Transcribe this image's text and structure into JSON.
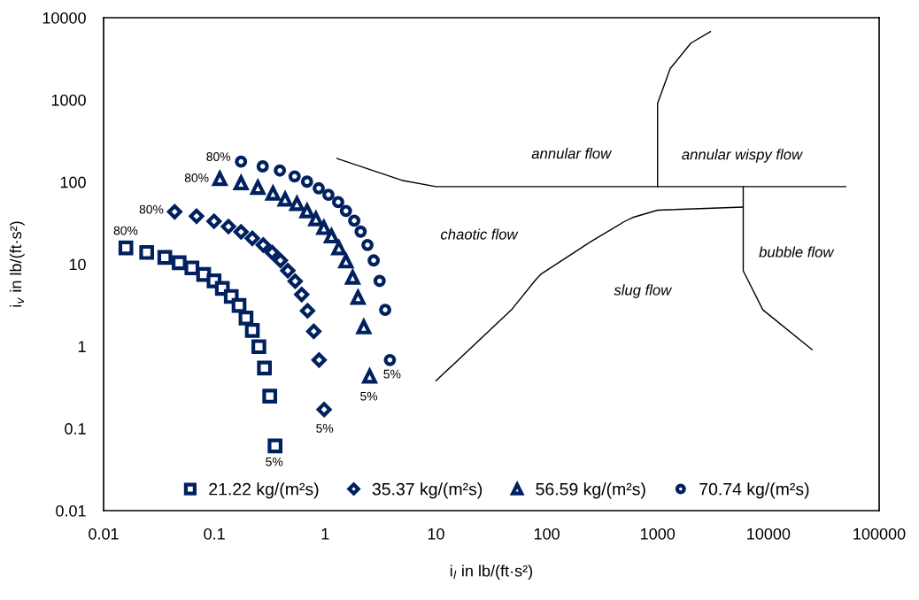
{
  "chart_data": {
    "type": "scatter",
    "xlabel": "i$_{l}$ in lb/(ft·s²)",
    "ylabel": "i$_{v}$ in lb/(ft·s²)",
    "log": "xy",
    "xlim": [
      0.01,
      100000
    ],
    "ylim": [
      0.01,
      10000
    ],
    "xticks": [
      0.01,
      0.1,
      1,
      10,
      100,
      1000,
      10000,
      100000
    ],
    "yticks": [
      0.01,
      0.1,
      1,
      10,
      100,
      1000,
      10000
    ],
    "grid": false,
    "legend": "bottom",
    "series": [
      {
        "name": "21.22 kg/(m²s)",
        "color": "#002060",
        "marker": "square",
        "x": [
          0.0159,
          0.0245,
          0.0357,
          0.0481,
          0.0627,
          0.08,
          0.0993,
          0.118,
          0.142,
          0.167,
          0.193,
          0.22,
          0.252,
          0.283,
          0.316,
          0.353
        ],
        "values": [
          15.8,
          13.9,
          12.1,
          10.4,
          9.0,
          7.5,
          6.25,
          5.08,
          4.04,
          3.15,
          2.21,
          1.56,
          0.99,
          0.545,
          0.248,
          0.0614
        ]
      },
      {
        "name": "35.37 kg/(m²s)",
        "color": "#002060",
        "marker": "diamond",
        "x": [
          0.0438,
          0.069,
          0.0993,
          0.134,
          0.174,
          0.22,
          0.276,
          0.332,
          0.394,
          0.46,
          0.536,
          0.614,
          0.693,
          0.789,
          0.881,
          0.978
        ],
        "values": [
          43.4,
          38.3,
          33.3,
          28.7,
          24.7,
          20.6,
          17.1,
          13.9,
          11.1,
          8.34,
          6.2,
          4.27,
          2.71,
          1.52,
          0.681,
          0.17
        ]
      },
      {
        "name": "56.59 kg/(m²s)",
        "color": "#002060",
        "marker": "triangle",
        "x": [
          0.112,
          0.174,
          0.247,
          0.338,
          0.435,
          0.556,
          0.686,
          0.824,
          0.973,
          1.14,
          1.33,
          1.54,
          1.77,
          1.98,
          2.23,
          2.52
        ],
        "values": [
          110,
          97.3,
          85.9,
          72.9,
          61.8,
          54.6,
          44.4,
          35.5,
          27.8,
          22.0,
          15.8,
          10.9,
          6.92,
          3.94,
          1.72,
          0.432
        ]
      },
      {
        "name": "70.74 kg/(m²s)",
        "color": "#002060",
        "marker": "circle",
        "x": [
          0.174,
          0.273,
          0.39,
          0.53,
          0.686,
          0.875,
          1.07,
          1.31,
          1.54,
          1.83,
          2.09,
          2.41,
          2.74,
          3.1,
          3.48,
          3.84
        ],
        "values": [
          177,
          155,
          138,
          117,
          101,
          83.8,
          69.9,
          56.9,
          44.4,
          33.8,
          24.9,
          17.1,
          11.1,
          6.25,
          2.78,
          0.681
        ]
      },
      {
        "type": "line",
        "color": "#000000",
        "marker": "none",
        "x": [
          1.28,
          4.9,
          10,
          50000
        ],
        "values": [
          193,
          105,
          88,
          88
        ]
      },
      {
        "type": "line",
        "color": "#000000",
        "marker": "none",
        "x": [
          1000,
          1000,
          1300,
          2000,
          3000
        ],
        "values": [
          88,
          900,
          2400,
          4900,
          6770
        ]
      },
      {
        "type": "line",
        "color": "#000000",
        "marker": "none",
        "x": [
          10,
          48,
          79,
          89,
          249,
          508,
          596,
          1000,
          5930
        ],
        "values": [
          0.38,
          2.78,
          6.4,
          7.6,
          18.8,
          33.3,
          37,
          45.4,
          49.5
        ]
      },
      {
        "type": "line",
        "color": "#000000",
        "marker": "none",
        "x": [
          5930,
          5930,
          8920,
          24800
        ],
        "values": [
          88,
          8.3,
          2.78,
          0.91
        ]
      }
    ],
    "annotations": [
      "annular flow",
      "annular wispy flow",
      "chaotic flow",
      "slug flow",
      "bubble flow",
      "80%",
      "80%",
      "80%",
      "80%",
      "5%",
      "5%",
      "5%",
      "5%"
    ]
  }
}
